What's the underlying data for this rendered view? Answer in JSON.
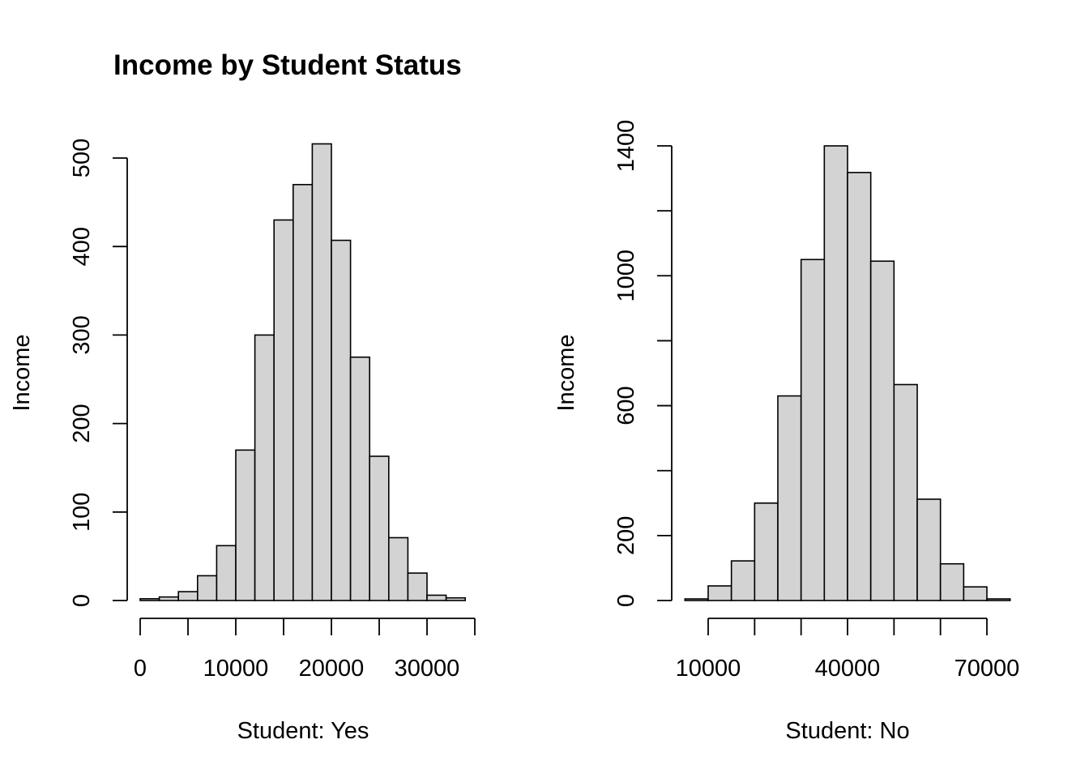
{
  "figure": {
    "title": "Income by Student Status"
  },
  "colors": {
    "bar_fill": "#d3d3d3",
    "bar_stroke": "#000000",
    "background": "#ffffff"
  },
  "chart_data": [
    {
      "type": "bar",
      "subtype": "histogram",
      "title": "Income by Student Status",
      "xlabel": "Student: Yes",
      "ylabel": "Income",
      "bin_width": 2000,
      "x_bins_start": [
        0,
        2000,
        4000,
        6000,
        8000,
        10000,
        12000,
        14000,
        16000,
        18000,
        20000,
        22000,
        24000,
        26000,
        28000,
        30000,
        32000
      ],
      "values": [
        2,
        4,
        10,
        28,
        62,
        170,
        300,
        430,
        470,
        516,
        407,
        275,
        163,
        71,
        31,
        6,
        3
      ],
      "xlim": [
        0,
        35000
      ],
      "ylim": [
        0,
        520
      ],
      "x_ticks": [
        0,
        5000,
        10000,
        15000,
        20000,
        25000,
        30000,
        35000
      ],
      "x_tick_labels": [
        "0",
        "10000",
        "20000",
        "30000"
      ],
      "x_tick_label_values": [
        0,
        10000,
        20000,
        30000
      ],
      "y_ticks": [
        0,
        100,
        200,
        300,
        400,
        500
      ],
      "y_tick_labels": [
        "0",
        "100",
        "200",
        "300",
        "400",
        "500"
      ],
      "grid": false
    },
    {
      "type": "bar",
      "subtype": "histogram",
      "title": "",
      "xlabel": "Student: No",
      "ylabel": "Income",
      "bin_width": 5000,
      "x_bins_start": [
        5000,
        10000,
        15000,
        20000,
        25000,
        30000,
        35000,
        40000,
        45000,
        50000,
        55000,
        60000,
        65000,
        70000
      ],
      "values": [
        5,
        45,
        122,
        300,
        630,
        1050,
        1400,
        1318,
        1045,
        665,
        312,
        113,
        42,
        5
      ],
      "xlim": [
        10000,
        70000
      ],
      "ylim": [
        0,
        1400
      ],
      "x_ticks": [
        10000,
        20000,
        30000,
        40000,
        50000,
        60000,
        70000
      ],
      "x_tick_labels": [
        "10000",
        "40000",
        "70000"
      ],
      "x_tick_label_values": [
        10000,
        40000,
        70000
      ],
      "y_ticks": [
        0,
        200,
        400,
        600,
        800,
        1000,
        1200,
        1400
      ],
      "y_tick_labels": [
        "0",
        "200",
        "600",
        "1000",
        "1400"
      ],
      "y_tick_label_values": [
        0,
        200,
        600,
        1000,
        1400
      ],
      "grid": false
    }
  ]
}
